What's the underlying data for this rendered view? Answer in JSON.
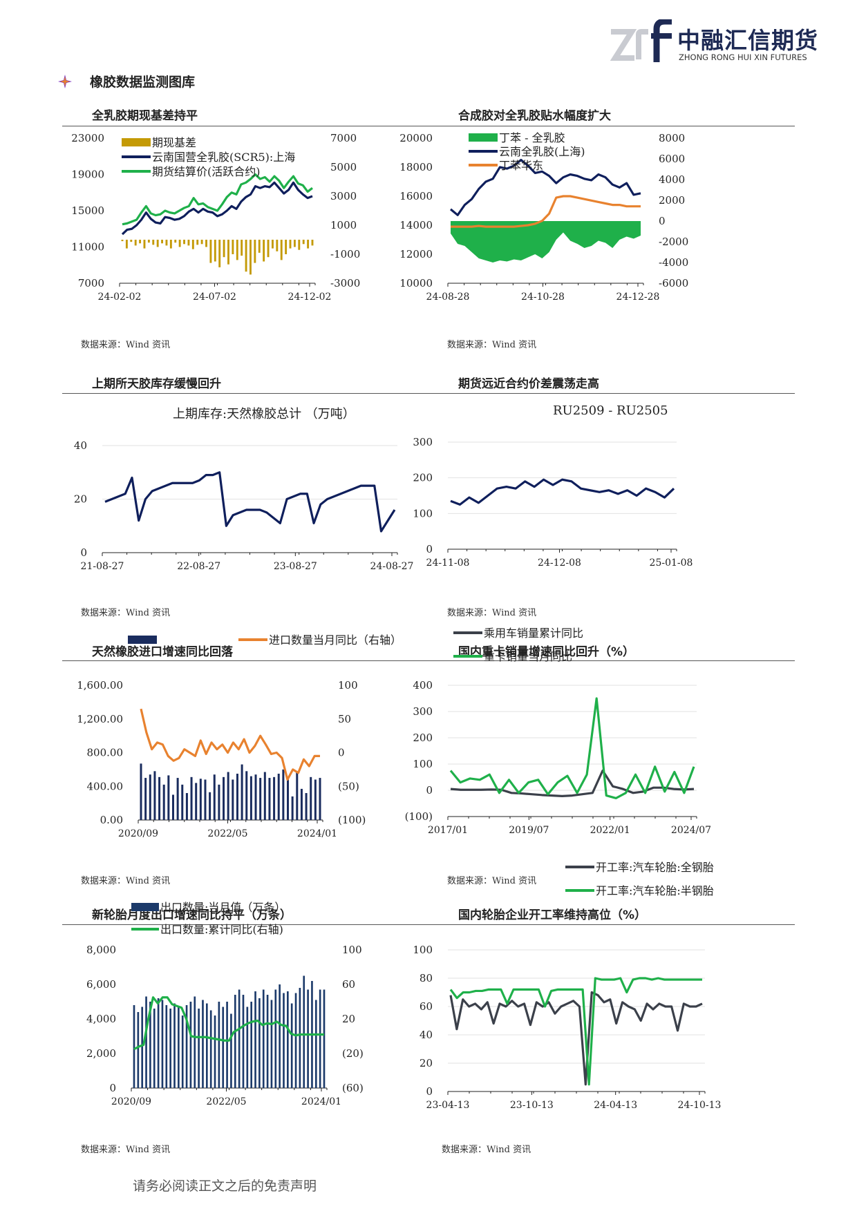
{
  "header": {
    "logo_cn": "中融汇信期货",
    "logo_en": "ZHONG RONG HUI XIN FUTURES",
    "page_title": "橡胶数据监测图库"
  },
  "footer": "请务必阅读正文之后的免责声明",
  "sections": [
    {
      "title": "全乳胶期现基差持平",
      "source": "数据来源：Wind 资讯"
    },
    {
      "title": "合成胶对全乳胶贴水幅度扩大",
      "source": "数据来源：Wind 资讯"
    },
    {
      "title": "上期所天胶库存缓慢回升",
      "source": "数据来源：Wind 资讯"
    },
    {
      "title": "期货远近合约价差震荡走高",
      "source": "数据来源：Wind 资讯"
    },
    {
      "title": "天然橡胶进口增速同比回落",
      "source": "数据来源：Wind 资讯"
    },
    {
      "title": "国内重卡销量增速同比回升（%）",
      "source": "数据来源：Wind 资讯"
    },
    {
      "title": "新轮胎月度出口增速同比持平（万条）",
      "source": "数据来源：Wind 资讯"
    },
    {
      "title": "国内轮胎企业开工率维持高位（%）",
      "source": "数据来源：Wind 资讯"
    }
  ],
  "chart_data": [
    {
      "type": "line",
      "yticks_left": [
        "23000",
        "19000",
        "15000",
        "11000",
        "7000"
      ],
      "yticks_right": [
        "7000",
        "5000",
        "3000",
        "1000",
        "-1000",
        "-3000"
      ],
      "ylim_left": [
        7000,
        23000
      ],
      "ylim_right": [
        -3000,
        7000
      ],
      "xticks": [
        "24-02-02",
        "24-07-02",
        "24-12-02"
      ],
      "series": [
        {
          "name": "期现基差",
          "axis": "right",
          "kind": "bar",
          "color": "#c49a06",
          "values": [
            -100,
            -600,
            -150,
            -400,
            -250,
            -600,
            -200,
            -350,
            -500,
            -250,
            -400,
            -600,
            -200,
            -500,
            -300,
            -400,
            -650,
            -350,
            -300,
            -500,
            -1600,
            -1500,
            -1900,
            -1200,
            -1700,
            -1000,
            -1400,
            -1100,
            -2200,
            -2400,
            -1600,
            -900,
            -1500,
            -1200,
            -600,
            -800,
            -1400,
            -1000,
            -600,
            -500,
            -700,
            -300,
            -600,
            -400
          ]
        },
        {
          "name": "云南国营全乳胶(SCR5):上海",
          "axis": "left",
          "color": "#0f1f5c",
          "values": [
            12400,
            12900,
            13000,
            13400,
            14000,
            14800,
            14100,
            13700,
            13600,
            14300,
            14200,
            14000,
            14100,
            14400,
            14900,
            15200,
            14800,
            15200,
            14900,
            14800,
            14400,
            14600,
            15000,
            15500,
            15200,
            16000,
            16500,
            16800,
            17700,
            17500,
            17700,
            17600,
            18100,
            17500,
            16900,
            17300,
            18100,
            17300,
            16800,
            16400,
            16600
          ]
        },
        {
          "name": "期货结算价(活跃合约)",
          "axis": "left",
          "color": "#1fb04a",
          "values": [
            13500,
            13600,
            13800,
            14000,
            14800,
            15500,
            14700,
            14500,
            14600,
            15000,
            14800,
            14700,
            15000,
            15300,
            15500,
            16400,
            15700,
            15800,
            15400,
            15200,
            15000,
            15700,
            16500,
            17000,
            16800,
            17900,
            18100,
            18500,
            19000,
            18500,
            18700,
            18200,
            18800,
            18300,
            17500,
            18200,
            18800,
            18000,
            17800,
            17100,
            17500
          ]
        }
      ]
    },
    {
      "type": "line",
      "yticks_left": [
        "20000",
        "18000",
        "16000",
        "14000",
        "12000",
        "10000"
      ],
      "yticks_right": [
        "8000",
        "6000",
        "4000",
        "2000",
        "0",
        "-2000",
        "-4000",
        "-6000"
      ],
      "ylim_left": [
        10000,
        20000
      ],
      "ylim_right": [
        -6000,
        8000
      ],
      "xticks": [
        "24-08-28",
        "24-10-28",
        "24-12-28"
      ],
      "series": [
        {
          "name": "丁苯 - 全乳胶",
          "axis": "right",
          "kind": "area",
          "color": "#1fb04a",
          "values": [
            -1200,
            -2200,
            -2400,
            -3000,
            -3600,
            -3800,
            -4000,
            -3800,
            -3900,
            -3700,
            -3800,
            -3500,
            -3200,
            -3600,
            -3000,
            -1800,
            -1100,
            -1900,
            -2200,
            -2600,
            -2400,
            -1900,
            -2100,
            -2600,
            -1800,
            -1500,
            -1700,
            -1400
          ]
        },
        {
          "name": "云南全乳胶(上海)",
          "axis": "left",
          "color": "#0f1f5c",
          "values": [
            15100,
            14700,
            15400,
            15800,
            16500,
            17000,
            17200,
            18000,
            17900,
            18100,
            18500,
            18100,
            17600,
            17700,
            17400,
            16900,
            17300,
            17500,
            17400,
            17200,
            17100,
            17500,
            17300,
            16800,
            16600,
            16900,
            16100,
            16200
          ]
        },
        {
          "name": "丁苯华东",
          "axis": "left",
          "color": "#e8822f",
          "values": [
            13900,
            13900,
            13900,
            13900,
            13950,
            13900,
            13900,
            13900,
            13900,
            13900,
            13950,
            14000,
            14100,
            14300,
            14800,
            15900,
            16000,
            16000,
            15900,
            15800,
            15700,
            15600,
            15500,
            15400,
            15400,
            15300,
            15300,
            15300
          ]
        }
      ]
    },
    {
      "type": "line",
      "title": "上期库存:天然橡胶总计 （万吨）",
      "yticks": [
        "40",
        "20",
        "0"
      ],
      "ylim": [
        0,
        40
      ],
      "xticks": [
        "21-08-27",
        "22-08-27",
        "23-08-27",
        "24-08-27"
      ],
      "series": [
        {
          "name": "上期库存:天然橡胶总计",
          "color": "#0f1f5c",
          "values": [
            19,
            20,
            21,
            22,
            28,
            12,
            20,
            23,
            24,
            25,
            26,
            26,
            26,
            26,
            27,
            29,
            29,
            30,
            10,
            14,
            15,
            16,
            16,
            16,
            15,
            13,
            11,
            20,
            21,
            22,
            22,
            11,
            18,
            20,
            21,
            22,
            23,
            24,
            25,
            25,
            25,
            8,
            12,
            16
          ]
        }
      ]
    },
    {
      "type": "line",
      "title": "RU2509 - RU2505",
      "yticks": [
        "300",
        "200",
        "100",
        "0"
      ],
      "ylim": [
        0,
        300
      ],
      "xticks": [
        "24-11-08",
        "24-12-08",
        "25-01-08"
      ],
      "series": [
        {
          "name": "RU2509 - RU2505",
          "color": "#0f1f5c",
          "values": [
            135,
            125,
            145,
            130,
            150,
            170,
            175,
            170,
            190,
            175,
            195,
            180,
            195,
            190,
            170,
            165,
            160,
            165,
            155,
            165,
            150,
            170,
            160,
            145,
            170
          ]
        }
      ]
    },
    {
      "type": "bar",
      "yticks_left": [
        "1,600.00",
        "1,200.00",
        "800.00",
        "400.00",
        "0.00"
      ],
      "yticks_right": [
        "100",
        "50",
        "0",
        "(50)",
        "(100)"
      ],
      "ylim_left": [
        0,
        1600
      ],
      "ylim_right": [
        -100,
        100
      ],
      "xticks": [
        "2020/09",
        "2022/05",
        "2024/01"
      ],
      "series": [
        {
          "name": "",
          "axis": "left",
          "kind": "bar",
          "color": "#1a2c5e",
          "values": [
            670,
            500,
            540,
            580,
            510,
            420,
            530,
            300,
            500,
            420,
            320,
            510,
            440,
            490,
            480,
            330,
            540,
            420,
            510,
            570,
            480,
            550,
            660,
            580,
            520,
            540,
            500,
            570,
            500,
            510,
            550,
            600,
            480,
            280,
            580,
            370,
            320,
            510,
            480,
            500
          ]
        },
        {
          "name": "进口数量当月同比（右轴）",
          "axis": "right",
          "color": "#e8822f",
          "values": [
            65,
            30,
            5,
            15,
            12,
            -5,
            -12,
            -8,
            5,
            0,
            -5,
            18,
            -2,
            15,
            5,
            12,
            0,
            15,
            5,
            20,
            0,
            10,
            25,
            12,
            -2,
            0,
            -8,
            -40,
            -25,
            -30,
            -10,
            -20,
            -5,
            -5
          ]
        }
      ]
    },
    {
      "type": "line",
      "yticks": [
        "400",
        "300",
        "200",
        "100",
        "0",
        "(100)"
      ],
      "ylim": [
        -100,
        400
      ],
      "xticks": [
        "2017/01",
        "2019/07",
        "2022/01",
        "2024/07"
      ],
      "series": [
        {
          "name": "乘用车销量累计同比",
          "color": "#3b404a",
          "values": [
            5,
            2,
            2,
            2,
            3,
            2,
            -10,
            -12,
            -15,
            -18,
            -20,
            -22,
            -20,
            -15,
            -10,
            75,
            15,
            5,
            -10,
            -5,
            10,
            10,
            5,
            3,
            5
          ]
        },
        {
          "name": "重卡销量当月同比",
          "color": "#1fb04a",
          "values": [
            75,
            30,
            45,
            40,
            60,
            -10,
            40,
            -10,
            30,
            40,
            -15,
            30,
            55,
            -10,
            60,
            350,
            -20,
            -30,
            -10,
            60,
            -10,
            90,
            -5,
            70,
            -10,
            90
          ]
        }
      ]
    },
    {
      "type": "bar",
      "yticks_left": [
        "8,000",
        "6,000",
        "4,000",
        "2,000",
        "0"
      ],
      "yticks_right": [
        "100",
        "60",
        "20",
        "(20)",
        "(60)"
      ],
      "ylim_left": [
        0,
        8000
      ],
      "ylim_right": [
        -60,
        100
      ],
      "xticks": [
        "2020/09",
        "2022/05",
        "2024/01"
      ],
      "series": [
        {
          "name": "出口数量:当月值（万条）",
          "axis": "left",
          "kind": "bar",
          "color": "#1c3a6a",
          "values": [
            4800,
            4400,
            4700,
            5300,
            5000,
            4600,
            5200,
            5100,
            4800,
            4600,
            4900,
            4700,
            4200,
            4800,
            5000,
            5300,
            4600,
            5100,
            4900,
            4500,
            4200,
            5000,
            4700,
            5000,
            4300,
            5400,
            5700,
            5400,
            4700,
            5000,
            5600,
            5200,
            5700,
            5400,
            5100,
            5700,
            6000,
            5500,
            5600,
            4900,
            5500,
            5800,
            6500,
            5700,
            6200,
            5100,
            5700,
            5700
          ]
        },
        {
          "name": "出口数量:累计同比(右轴)",
          "axis": "right",
          "color": "#1fb04a",
          "values": [
            -15,
            -12,
            -10,
            20,
            45,
            38,
            45,
            45,
            37,
            35,
            33,
            20,
            0,
            -1,
            -1,
            -1,
            -2,
            -3,
            -4,
            -5,
            -5,
            5,
            8,
            12,
            15,
            17,
            18,
            13,
            15,
            14,
            17,
            13,
            12,
            3,
            1,
            2,
            2,
            2,
            2,
            2,
            2
          ]
        }
      ]
    },
    {
      "type": "line",
      "yticks": [
        "100",
        "80",
        "60",
        "40",
        "20",
        "0"
      ],
      "ylim": [
        0,
        100
      ],
      "xticks": [
        "23-04-13",
        "23-10-13",
        "24-04-13",
        "24-10-13"
      ],
      "series": [
        {
          "name": "开工率:汽车轮胎:全钢胎",
          "color": "#3b404a",
          "values": [
            68,
            44,
            65,
            60,
            62,
            58,
            63,
            48,
            62,
            60,
            64,
            60,
            62,
            47,
            63,
            60,
            63,
            55,
            60,
            62,
            64,
            60,
            5,
            70,
            68,
            63,
            65,
            48,
            63,
            60,
            58,
            50,
            62,
            58,
            62,
            60,
            60,
            43,
            62,
            60,
            60,
            62
          ]
        },
        {
          "name": "开工率:汽车轮胎:半钢胎",
          "color": "#1fb04a",
          "values": [
            72,
            66,
            70,
            70,
            71,
            71,
            72,
            72,
            72,
            62,
            72,
            72,
            72,
            72,
            72,
            60,
            71,
            72,
            72,
            72,
            72,
            72,
            5,
            80,
            79,
            79,
            79,
            80,
            70,
            79,
            80,
            80,
            79,
            80,
            79,
            79,
            79,
            79,
            79,
            79,
            79
          ]
        }
      ]
    }
  ]
}
